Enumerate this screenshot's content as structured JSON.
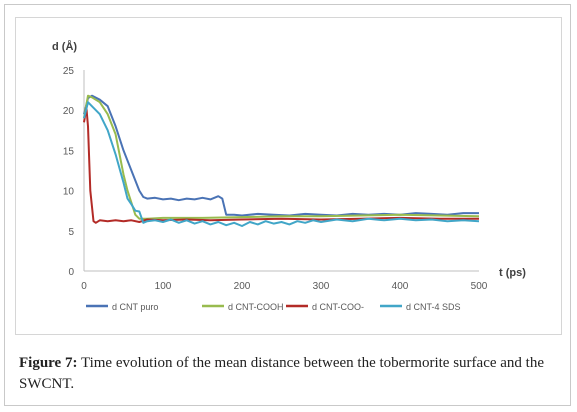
{
  "chart_data": {
    "type": "line",
    "title": "",
    "ylabel": "d (Å)",
    "xlabel": "t (ps)",
    "xlim": [
      0,
      500
    ],
    "ylim": [
      0,
      25
    ],
    "xticks": [
      "0",
      "100",
      "200",
      "300",
      "400",
      "500"
    ],
    "yticks": [
      "0",
      "5",
      "10",
      "15",
      "20",
      "25"
    ],
    "legend_position": "bottom",
    "series": [
      {
        "name": "d CNT puro",
        "color": "#4a73b5",
        "points": [
          [
            0,
            19.5
          ],
          [
            5,
            21.5
          ],
          [
            10,
            21.8
          ],
          [
            20,
            21.3
          ],
          [
            30,
            20.5
          ],
          [
            40,
            18
          ],
          [
            50,
            15
          ],
          [
            60,
            12.5
          ],
          [
            70,
            10
          ],
          [
            75,
            9.2
          ],
          [
            80,
            9.0
          ],
          [
            90,
            9.1
          ],
          [
            100,
            8.9
          ],
          [
            110,
            9.0
          ],
          [
            120,
            8.8
          ],
          [
            130,
            9.0
          ],
          [
            140,
            8.9
          ],
          [
            150,
            9.1
          ],
          [
            160,
            8.9
          ],
          [
            170,
            9.3
          ],
          [
            175,
            9.0
          ],
          [
            180,
            7.0
          ],
          [
            190,
            7.0
          ],
          [
            200,
            6.9
          ],
          [
            220,
            7.1
          ],
          [
            240,
            7.0
          ],
          [
            260,
            6.9
          ],
          [
            280,
            7.1
          ],
          [
            300,
            7.0
          ],
          [
            320,
            6.9
          ],
          [
            340,
            7.1
          ],
          [
            360,
            7.0
          ],
          [
            380,
            7.1
          ],
          [
            400,
            7.0
          ],
          [
            420,
            7.2
          ],
          [
            440,
            7.1
          ],
          [
            460,
            7.0
          ],
          [
            480,
            7.2
          ],
          [
            500,
            7.2
          ]
        ]
      },
      {
        "name": "d CNT-COOH",
        "color": "#98bb4e",
        "points": [
          [
            0,
            19.0
          ],
          [
            5,
            21.8
          ],
          [
            10,
            21.6
          ],
          [
            20,
            21.0
          ],
          [
            30,
            19.5
          ],
          [
            40,
            17
          ],
          [
            50,
            12
          ],
          [
            55,
            10
          ],
          [
            60,
            8.5
          ],
          [
            65,
            7.0
          ],
          [
            70,
            6.5
          ],
          [
            80,
            6.5
          ],
          [
            100,
            6.6
          ],
          [
            150,
            6.6
          ],
          [
            200,
            6.7
          ],
          [
            250,
            6.8
          ],
          [
            300,
            6.8
          ],
          [
            350,
            6.9
          ],
          [
            400,
            7.0
          ],
          [
            450,
            6.9
          ],
          [
            500,
            6.8
          ]
        ]
      },
      {
        "name": "d CNT-COO-",
        "color": "#b32b27",
        "points": [
          [
            0,
            18.5
          ],
          [
            3,
            20.3
          ],
          [
            5,
            18
          ],
          [
            8,
            10
          ],
          [
            12,
            6.2
          ],
          [
            15,
            6.0
          ],
          [
            20,
            6.3
          ],
          [
            30,
            6.2
          ],
          [
            40,
            6.3
          ],
          [
            50,
            6.2
          ],
          [
            60,
            6.3
          ],
          [
            70,
            6.1
          ],
          [
            80,
            6.4
          ],
          [
            100,
            6.3
          ],
          [
            130,
            6.4
          ],
          [
            160,
            6.3
          ],
          [
            200,
            6.4
          ],
          [
            250,
            6.5
          ],
          [
            300,
            6.4
          ],
          [
            350,
            6.5
          ],
          [
            400,
            6.6
          ],
          [
            450,
            6.5
          ],
          [
            500,
            6.5
          ]
        ]
      },
      {
        "name": "d CNT-4 SDS",
        "color": "#41a6c8",
        "points": [
          [
            0,
            19.0
          ],
          [
            5,
            21.0
          ],
          [
            10,
            20.5
          ],
          [
            20,
            19.5
          ],
          [
            30,
            17.5
          ],
          [
            40,
            14.5
          ],
          [
            50,
            11
          ],
          [
            55,
            9
          ],
          [
            60,
            8.3
          ],
          [
            65,
            7.5
          ],
          [
            70,
            7.4
          ],
          [
            75,
            6.0
          ],
          [
            80,
            6.2
          ],
          [
            90,
            6.3
          ],
          [
            100,
            6.1
          ],
          [
            110,
            6.4
          ],
          [
            120,
            6.0
          ],
          [
            130,
            6.3
          ],
          [
            140,
            5.9
          ],
          [
            150,
            6.2
          ],
          [
            160,
            5.8
          ],
          [
            170,
            6.1
          ],
          [
            180,
            5.7
          ],
          [
            190,
            6.0
          ],
          [
            200,
            5.6
          ],
          [
            210,
            6.1
          ],
          [
            220,
            5.8
          ],
          [
            230,
            6.2
          ],
          [
            240,
            5.9
          ],
          [
            250,
            6.1
          ],
          [
            260,
            5.8
          ],
          [
            270,
            6.2
          ],
          [
            280,
            6.0
          ],
          [
            290,
            6.3
          ],
          [
            300,
            6.1
          ],
          [
            320,
            6.4
          ],
          [
            340,
            6.2
          ],
          [
            360,
            6.5
          ],
          [
            380,
            6.3
          ],
          [
            400,
            6.5
          ],
          [
            420,
            6.3
          ],
          [
            440,
            6.4
          ],
          [
            460,
            6.2
          ],
          [
            480,
            6.3
          ],
          [
            500,
            6.2
          ]
        ]
      }
    ]
  },
  "caption": {
    "label": "Figure 7:",
    "text": " Time evolution of the mean distance between the tobermorite surface and the SWCNT."
  }
}
